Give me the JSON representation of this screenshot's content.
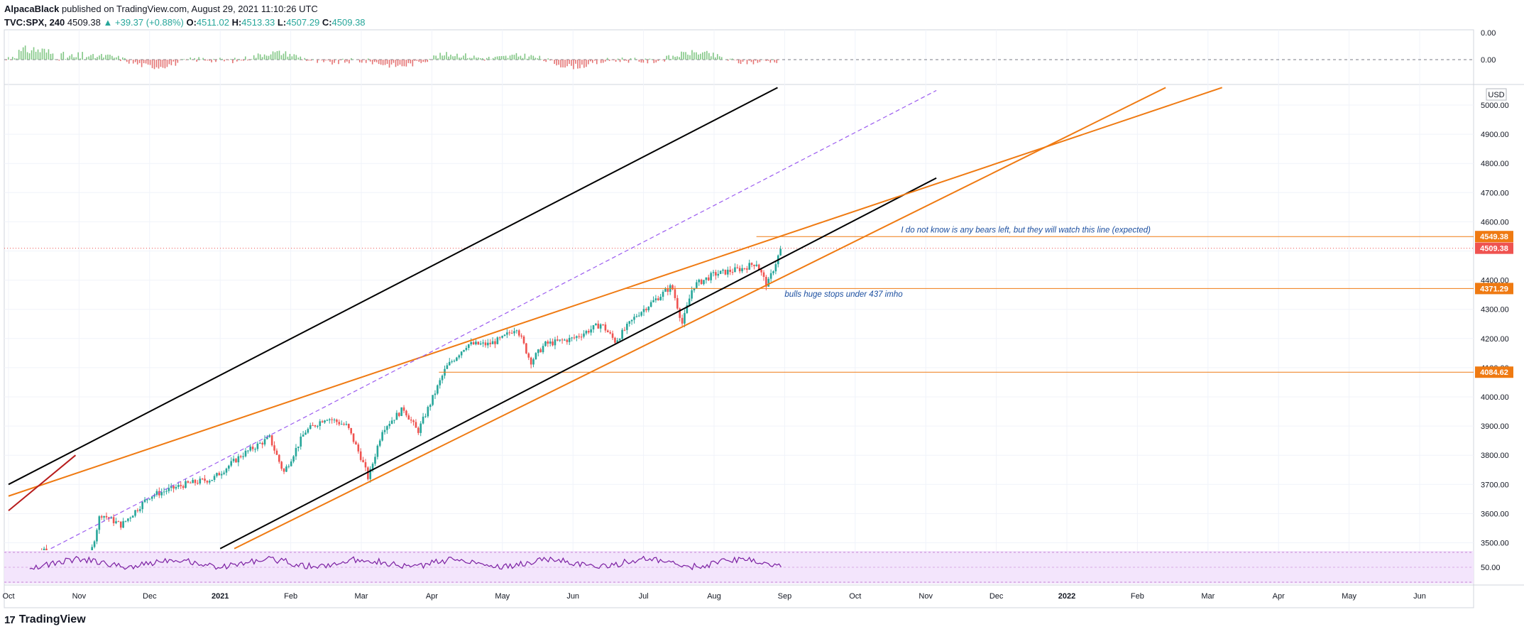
{
  "header": {
    "publisher": "AlpacaBlack",
    "published_line": " published on TradingView.com, August 29, 2021 11:10:26 UTC",
    "symbol": "TVC:SPX, 240",
    "last": "4509.38",
    "change": "▲ +39.37 (+0.88%)",
    "o_label": "O:",
    "o_val": "4511.02",
    "h_label": "H:",
    "h_val": "4513.33",
    "l_label": "L:",
    "l_val": "4507.29",
    "c_label": "C:",
    "c_val": "4509.38"
  },
  "footer": {
    "brand": "TradingView",
    "logo": "17"
  },
  "colors": {
    "orange": "#ef7a12",
    "black": "#000000",
    "red": "#b71c1c",
    "up": "#26a69a",
    "down": "#ef5350",
    "purple_dash": "#9c5cf0",
    "rsi_line": "#7b1fa2",
    "rsi_band": "#f3e5fc",
    "annotation_blue": "#1c4fa0",
    "grid": "#f0f3fa",
    "price_label_red": "#ef5350"
  },
  "chart_data": {
    "type": "candlestick",
    "currency": "USD",
    "y_ticks": [
      "3500.00",
      "3600.00",
      "3700.00",
      "3800.00",
      "3900.00",
      "4000.00",
      "4100.00",
      "4200.00",
      "4300.00",
      "4400.00",
      "4500.00",
      "4600.00",
      "4700.00",
      "4800.00",
      "4900.00",
      "5000.00"
    ],
    "ylim": [
      3470,
      5060
    ],
    "x_ticks": [
      "Oct",
      "Nov",
      "Dec",
      "2021",
      "Feb",
      "Mar",
      "Apr",
      "May",
      "Jun",
      "Jul",
      "Aug",
      "Sep",
      "Oct",
      "Nov",
      "Dec",
      "2022",
      "Feb",
      "Mar",
      "Apr",
      "May",
      "Jun"
    ],
    "xlim_months": [
      0,
      20.9
    ],
    "last_bar_month": 10.95,
    "price_points": [
      {
        "m": 0.0,
        "v": 3390
      },
      {
        "m": 0.5,
        "v": 3480
      },
      {
        "m": 1.0,
        "v": 3290
      },
      {
        "m": 1.3,
        "v": 3600
      },
      {
        "m": 1.6,
        "v": 3560
      },
      {
        "m": 2.0,
        "v": 3660
      },
      {
        "m": 2.5,
        "v": 3700
      },
      {
        "m": 2.9,
        "v": 3720
      },
      {
        "m": 3.3,
        "v": 3800
      },
      {
        "m": 3.7,
        "v": 3860
      },
      {
        "m": 3.9,
        "v": 3740
      },
      {
        "m": 4.2,
        "v": 3880
      },
      {
        "m": 4.5,
        "v": 3930
      },
      {
        "m": 4.8,
        "v": 3900
      },
      {
        "m": 5.0,
        "v": 3790
      },
      {
        "m": 5.1,
        "v": 3720
      },
      {
        "m": 5.3,
        "v": 3890
      },
      {
        "m": 5.6,
        "v": 3960
      },
      {
        "m": 5.8,
        "v": 3880
      },
      {
        "m": 6.0,
        "v": 3990
      },
      {
        "m": 6.2,
        "v": 4100
      },
      {
        "m": 6.5,
        "v": 4180
      },
      {
        "m": 6.8,
        "v": 4180
      },
      {
        "m": 7.0,
        "v": 4200
      },
      {
        "m": 7.2,
        "v": 4240
      },
      {
        "m": 7.4,
        "v": 4120
      },
      {
        "m": 7.6,
        "v": 4180
      },
      {
        "m": 8.0,
        "v": 4200
      },
      {
        "m": 8.4,
        "v": 4250
      },
      {
        "m": 8.6,
        "v": 4190
      },
      {
        "m": 8.9,
        "v": 4280
      },
      {
        "m": 9.2,
        "v": 4340
      },
      {
        "m": 9.4,
        "v": 4380
      },
      {
        "m": 9.55,
        "v": 4250
      },
      {
        "m": 9.7,
        "v": 4380
      },
      {
        "m": 10.0,
        "v": 4420
      },
      {
        "m": 10.4,
        "v": 4440
      },
      {
        "m": 10.6,
        "v": 4460
      },
      {
        "m": 10.75,
        "v": 4380
      },
      {
        "m": 10.95,
        "v": 4509
      }
    ],
    "price_lines": [
      {
        "value": 4549.38,
        "label": "4549.38",
        "color": "#ef7a12"
      },
      {
        "value": 4509.38,
        "label": "4509.38",
        "color": "#ef5350"
      },
      {
        "value": 4371.29,
        "label": "4371.29",
        "color": "#ef7a12"
      },
      {
        "value": 4084.62,
        "label": "4084.62",
        "color": "#ef7a12"
      }
    ],
    "trend_lines": [
      {
        "color": "#000000",
        "p1": {
          "m": 0.0,
          "v": 3700
        },
        "p2": {
          "m": 10.9,
          "v": 5060
        }
      },
      {
        "color": "#000000",
        "p1": {
          "m": 3.0,
          "v": 3480
        },
        "p2": {
          "m": 13.15,
          "v": 4750
        }
      },
      {
        "color": "#ef7a12",
        "p1": {
          "m": 0.0,
          "v": 3660
        },
        "p2": {
          "m": 17.2,
          "v": 5060
        }
      },
      {
        "color": "#ef7a12",
        "p1": {
          "m": 3.2,
          "v": 3480
        },
        "p2": {
          "m": 16.4,
          "v": 5060
        }
      },
      {
        "color": "#b71c1c",
        "p1": {
          "m": 0.0,
          "v": 3610
        },
        "p2": {
          "m": 0.95,
          "v": 3800
        }
      }
    ],
    "dashed_line": {
      "color": "#9c5cf0",
      "p1": {
        "m": 0.6,
        "v": 3480
      },
      "p2": {
        "m": 13.15,
        "v": 5050
      }
    },
    "annotations": [
      {
        "text": "I do not know is any bears left, but they will watch this line (expected)",
        "m": 12.65,
        "v": 4563
      },
      {
        "text": "bulls huge stops under 437 imho",
        "m": 11.0,
        "v": 4343
      }
    ],
    "oscillator": {
      "zero_label": "0.00",
      "top_label": "0.00"
    },
    "rsi": {
      "label": "50.00",
      "level": 50
    }
  }
}
